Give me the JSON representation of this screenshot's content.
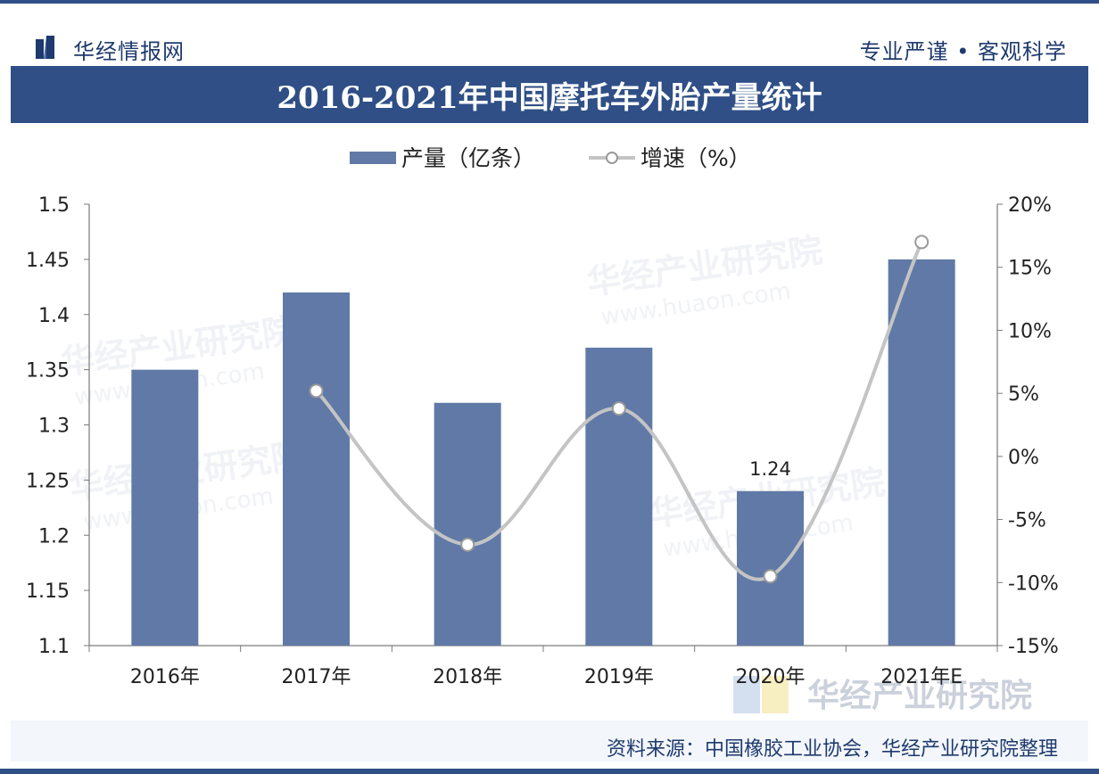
{
  "header": {
    "brand": "华经情报网",
    "slogan": "专业严谨 • 客观科学"
  },
  "title": "2016-2021年中国摩托车外胎产量统计",
  "source": "资料来源：中国橡胶工业协会，华经产业研究院整理",
  "watermark": {
    "text": "华经产业研究院",
    "url": "www.huaon.com"
  },
  "colors": {
    "bar": "#6079a6",
    "line": "#c4c4c4",
    "header": "#2f4f86"
  },
  "chart_data": {
    "type": "bar",
    "categories": [
      "2016年",
      "2017年",
      "2018年",
      "2019年",
      "2020年",
      "2021年E"
    ],
    "series": [
      {
        "name": "产量（亿条）",
        "type": "bar",
        "axis": "left",
        "values": [
          1.35,
          1.42,
          1.32,
          1.37,
          1.24,
          1.45
        ]
      },
      {
        "name": "增速（%）",
        "type": "line",
        "axis": "right",
        "values": [
          null,
          5.2,
          -7.0,
          3.8,
          -9.5,
          17.0
        ]
      }
    ],
    "data_labels": [
      {
        "category": "2020年",
        "series": "产量（亿条）",
        "text": "1.24"
      }
    ],
    "y_left": {
      "min": 1.1,
      "max": 1.5,
      "step": 0.05,
      "ticks": [
        "1.1",
        "1.15",
        "1.2",
        "1.25",
        "1.3",
        "1.35",
        "1.4",
        "1.45",
        "1.5"
      ]
    },
    "y_right": {
      "min": -15,
      "max": 20,
      "step": 5,
      "ticks": [
        "-15%",
        "-10%",
        "-5%",
        "0%",
        "5%",
        "10%",
        "15%",
        "20%"
      ]
    },
    "legend_position": "top-center",
    "grid": false
  }
}
